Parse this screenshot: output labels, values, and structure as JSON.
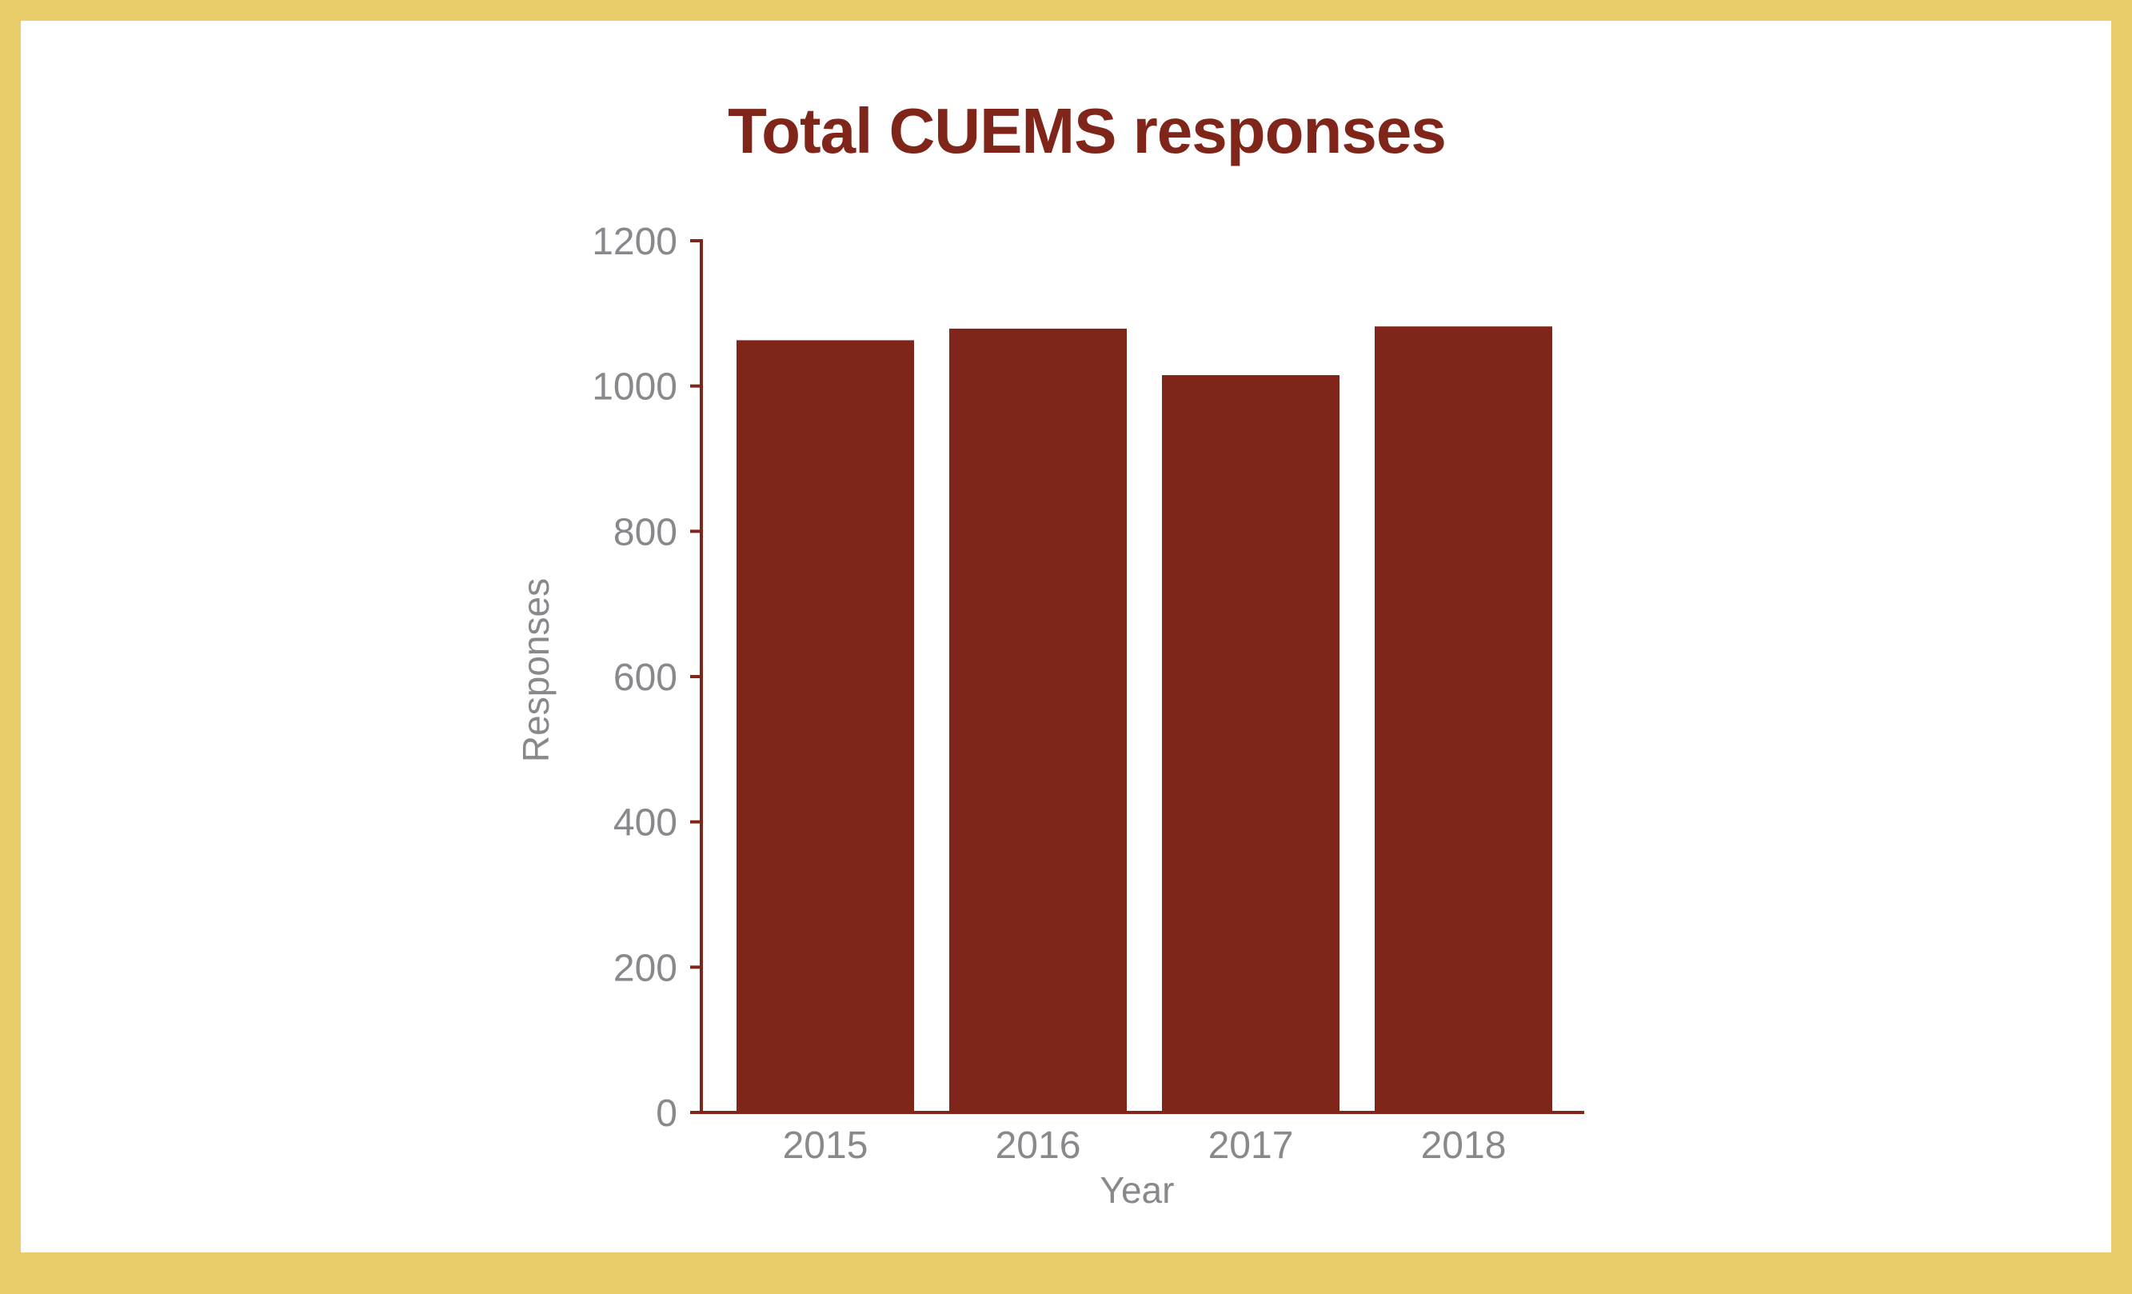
{
  "colors": {
    "border": "#e8cd6a",
    "background": "#ffffff",
    "bar": "#7f2519",
    "axis": "#7f2519",
    "title": "#7f2519",
    "label": "#87898c"
  },
  "chart_data": {
    "type": "bar",
    "title": "Total CUEMS responses",
    "xlabel": "Year",
    "ylabel": "Responses",
    "categories": [
      "2015",
      "2016",
      "2017",
      "2018"
    ],
    "values": [
      1063,
      1079,
      1015,
      1082
    ],
    "ylim": [
      0,
      1200
    ],
    "yticks": [
      0,
      200,
      400,
      600,
      800,
      1000,
      1200
    ],
    "grid": false,
    "legend": "none"
  }
}
